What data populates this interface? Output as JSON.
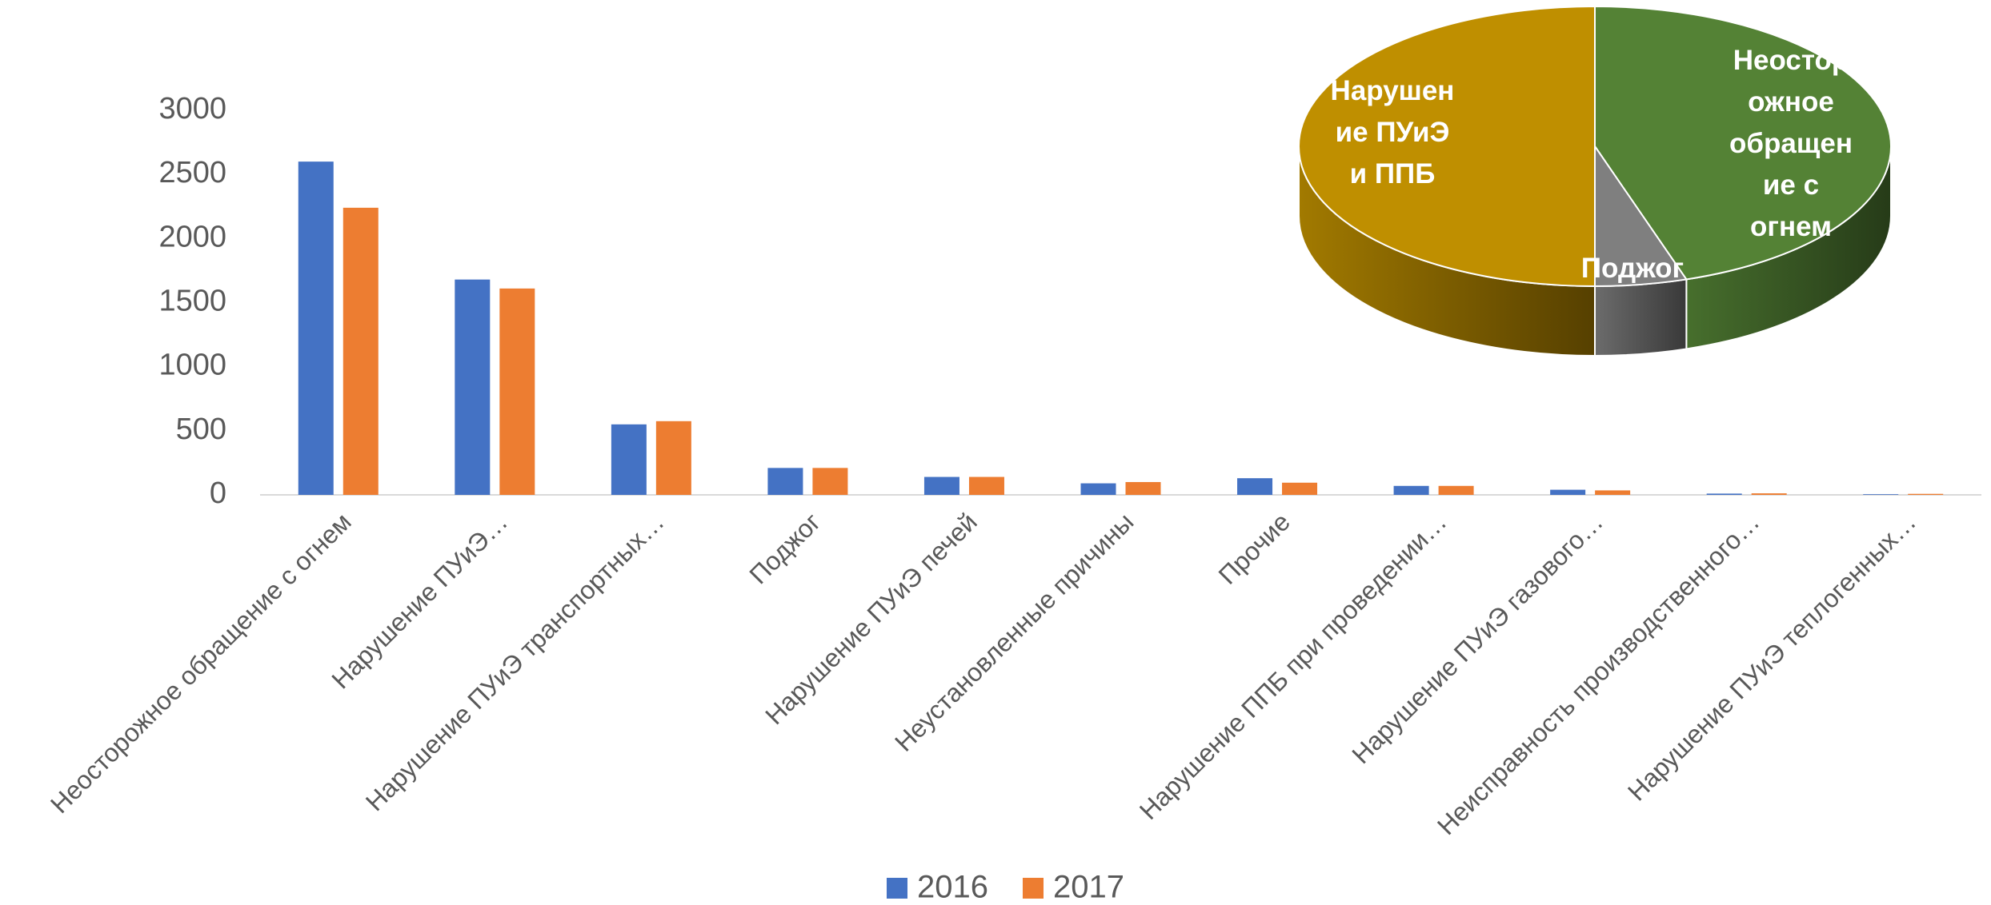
{
  "chart_data": [
    {
      "type": "bar",
      "categories": [
        "Неосторожное обращение с огнем",
        "Нарушение ПУиЭ…",
        "Нарушение ПУиЭ транспортных…",
        "Поджог",
        "Нарушение ПУиЭ печей",
        "Неустановленные причины",
        "Прочие",
        "Нарушение ППБ при проведении…",
        "Нарушение ПУиЭ газового…",
        "Неисправность производственного…",
        "Нарушение ПУиЭ теплогенных…"
      ],
      "series": [
        {
          "name": "2016",
          "color": "#4472c4",
          "values": [
            2600,
            1680,
            550,
            210,
            140,
            90,
            130,
            70,
            40,
            10,
            5
          ]
        },
        {
          "name": "2017",
          "color": "#ed7d31",
          "values": [
            2240,
            1610,
            575,
            210,
            140,
            100,
            95,
            70,
            35,
            12,
            8
          ]
        }
      ],
      "ylim": [
        0,
        3000
      ],
      "yticks": [
        0,
        500,
        1000,
        1500,
        2000,
        2500,
        3000
      ],
      "grid": false,
      "legend": "bottom"
    },
    {
      "type": "pie",
      "categories": [
        "Неосторожное обращение с огнем",
        "Поджог",
        "Нарушение ПУиЭ и ППБ"
      ],
      "values": [
        45,
        5,
        50
      ],
      "colors": [
        "#548235",
        "#7f7f7f",
        "#bf8f00"
      ]
    }
  ]
}
